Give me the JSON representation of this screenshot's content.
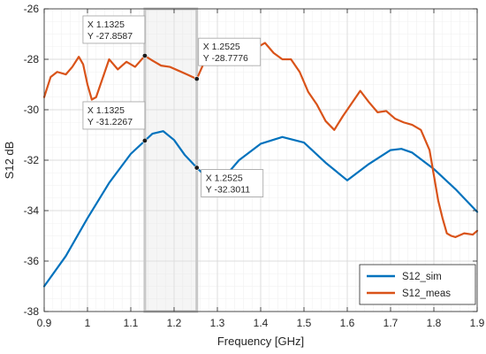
{
  "chart_data": {
    "type": "line",
    "title": "",
    "xlabel": "Frequency [GHz]",
    "ylabel": "S12 dB",
    "xlim": [
      0.9,
      1.9
    ],
    "ylim": [
      -38,
      -26
    ],
    "grid": true,
    "minor_grid": true,
    "legend_position": "bottom-right",
    "x_ticks": [
      0.9,
      1.0,
      1.1,
      1.2,
      1.3,
      1.4,
      1.5,
      1.6,
      1.7,
      1.8,
      1.9
    ],
    "x_tick_labels": [
      "0.9",
      "1",
      "1.1",
      "1.2",
      "1.3",
      "1.4",
      "1.5",
      "1.6",
      "1.7",
      "1.8",
      "1.9"
    ],
    "y_ticks": [
      -38,
      -36,
      -34,
      -32,
      -30,
      -28,
      -26
    ],
    "y_tick_labels": [
      "-38",
      "-36",
      "-34",
      "-32",
      "-30",
      "-28",
      "-26"
    ],
    "highlight_region": {
      "x_start": 1.1325,
      "x_end": 1.2525
    },
    "series": [
      {
        "name": "S12_sim",
        "color": "#0072BD",
        "x": [
          0.9,
          0.95,
          1.0,
          1.05,
          1.1,
          1.1325,
          1.15,
          1.175,
          1.2,
          1.225,
          1.2525,
          1.28,
          1.3,
          1.325,
          1.35,
          1.4,
          1.45,
          1.5,
          1.55,
          1.6,
          1.65,
          1.7,
          1.725,
          1.75,
          1.8,
          1.85,
          1.9
        ],
        "y": [
          -37.0,
          -35.8,
          -34.3,
          -32.9,
          -31.75,
          -31.23,
          -30.95,
          -30.85,
          -31.2,
          -31.8,
          -32.3,
          -32.75,
          -32.75,
          -32.5,
          -32.0,
          -31.35,
          -31.08,
          -31.3,
          -32.1,
          -32.8,
          -32.15,
          -31.6,
          -31.55,
          -31.7,
          -32.35,
          -33.15,
          -34.05
        ]
      },
      {
        "name": "S12_meas",
        "color": "#D95319",
        "x": [
          0.9,
          0.915,
          0.93,
          0.95,
          0.965,
          0.98,
          0.99,
          1.0,
          1.01,
          1.02,
          1.03,
          1.05,
          1.07,
          1.09,
          1.11,
          1.1325,
          1.15,
          1.17,
          1.19,
          1.21,
          1.23,
          1.2525,
          1.27,
          1.29,
          1.31,
          1.33,
          1.35,
          1.37,
          1.39,
          1.41,
          1.43,
          1.45,
          1.47,
          1.49,
          1.51,
          1.53,
          1.55,
          1.57,
          1.59,
          1.61,
          1.63,
          1.65,
          1.67,
          1.69,
          1.71,
          1.73,
          1.75,
          1.77,
          1.78,
          1.79,
          1.8,
          1.81,
          1.82,
          1.83,
          1.84,
          1.85,
          1.87,
          1.89,
          1.9
        ],
        "y": [
          -29.5,
          -28.7,
          -28.5,
          -28.6,
          -28.3,
          -27.9,
          -28.2,
          -29.0,
          -29.6,
          -29.5,
          -29.0,
          -28.0,
          -28.4,
          -28.1,
          -28.3,
          -27.86,
          -28.05,
          -28.25,
          -28.3,
          -28.45,
          -28.6,
          -28.78,
          -28.1,
          -27.6,
          -27.4,
          -27.35,
          -27.25,
          -27.3,
          -27.55,
          -27.35,
          -27.75,
          -28.0,
          -28.0,
          -28.5,
          -29.3,
          -29.8,
          -30.45,
          -30.8,
          -30.25,
          -29.75,
          -29.25,
          -29.7,
          -30.1,
          -30.05,
          -30.35,
          -30.5,
          -30.6,
          -30.8,
          -31.2,
          -31.6,
          -32.6,
          -33.6,
          -34.3,
          -34.9,
          -35.0,
          -35.05,
          -34.9,
          -34.95,
          -34.8
        ]
      }
    ],
    "datatips": [
      {
        "x_label": "X 1.1325",
        "y_label": "Y -27.8587",
        "x": 1.1325,
        "y": -27.8587
      },
      {
        "x_label": "X 1.2525",
        "y_label": "Y -28.7776",
        "x": 1.2525,
        "y": -28.7776
      },
      {
        "x_label": "X 1.1325",
        "y_label": "Y -31.2267",
        "x": 1.1325,
        "y": -31.2267
      },
      {
        "x_label": "X 1.2525",
        "y_label": "Y -32.3011",
        "x": 1.2525,
        "y": -32.3011
      }
    ]
  }
}
